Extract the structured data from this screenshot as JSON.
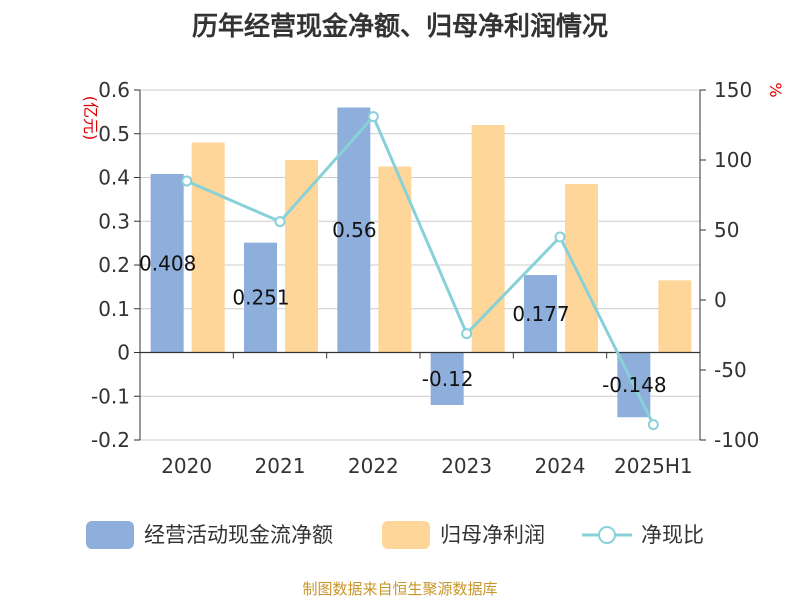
{
  "chart_data": {
    "type": "bar",
    "title": "历年经营现金净额、归母净利润情况",
    "categories": [
      "2020",
      "2021",
      "2022",
      "2023",
      "2024",
      "2025H1"
    ],
    "left_axis": {
      "unit": "(亿元)",
      "ylim": [
        -0.2,
        0.6
      ],
      "ticks": [
        "0.6",
        "0.5",
        "0.4",
        "0.3",
        "0.2",
        "0.1",
        "0",
        "-0.1",
        "-0.2"
      ]
    },
    "right_axis": {
      "unit": "%",
      "ylim": [
        -100,
        150
      ],
      "ticks": [
        "150",
        "100",
        "50",
        "0",
        "-50",
        "-100"
      ]
    },
    "series": [
      {
        "name": "经营活动现金流净额",
        "type": "bar",
        "axis": "left",
        "color": "#8eaedb",
        "values": [
          0.408,
          0.251,
          0.56,
          -0.12,
          0.177,
          -0.148
        ],
        "labels": [
          "0.408",
          "0.251",
          "0.56",
          "-0.12",
          "0.177",
          "-0.148"
        ]
      },
      {
        "name": "归母净利润",
        "type": "bar",
        "axis": "left",
        "color": "#ffd699",
        "values": [
          0.48,
          0.44,
          0.425,
          0.52,
          0.385,
          0.165
        ]
      },
      {
        "name": "净现比",
        "type": "line",
        "axis": "right",
        "color": "#88d1d8",
        "values": [
          85,
          56,
          131,
          -24,
          45,
          -89
        ]
      }
    ],
    "grid": true,
    "legend_position": "bottom"
  },
  "source": "制图数据来自恒生聚源数据库"
}
